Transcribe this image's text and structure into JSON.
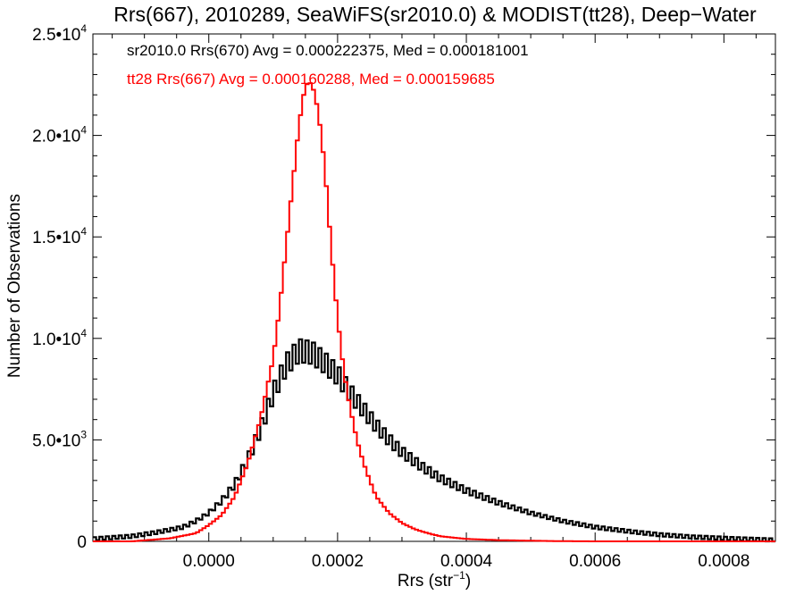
{
  "chart_data": {
    "type": "line",
    "title": "Rrs(667), 2010289, SeaWiFS(sr2010.0) & MODIST(tt28), Deep−Water",
    "xlabel_main": "Rrs (str",
    "xlabel_sup": "−1",
    "xlabel_end": ")",
    "ylabel": "Number of Observations",
    "xlim": [
      -0.00018,
      0.00088
    ],
    "ylim": [
      0,
      25000
    ],
    "x_ticks": [
      0.0,
      0.0002,
      0.0004,
      0.0006,
      0.0008
    ],
    "x_tick_labels": [
      "0.0000",
      "0.0002",
      "0.0004",
      "0.0006",
      "0.0008"
    ],
    "y_ticks": [
      {
        "value": 0,
        "mantissa": "0",
        "exp": ""
      },
      {
        "value": 5000,
        "mantissa": "5.0•10",
        "exp": "3"
      },
      {
        "value": 10000,
        "mantissa": "1.0•10",
        "exp": "4"
      },
      {
        "value": 15000,
        "mantissa": "1.5•10",
        "exp": "4"
      },
      {
        "value": 20000,
        "mantissa": "2.0•10",
        "exp": "4"
      },
      {
        "value": 25000,
        "mantissa": "2.5•10",
        "exp": "4"
      }
    ],
    "annotations": [
      {
        "text": "sr2010.0 Rrs(670) Avg = 0.000222375, Med = 0.000181001",
        "color": "#000000"
      },
      {
        "text": "tt28 Rrs(667) Avg = 0.000160288, Med = 0.000159685",
        "color": "#ff0000"
      }
    ],
    "series": [
      {
        "name": "sr2010.0",
        "color": "#000000",
        "style": "noisy-step",
        "x": [
          -0.00018,
          -0.00012,
          -8e-05,
          -4e-05,
          -2e-05,
          0.0,
          2e-05,
          4e-05,
          6e-05,
          8e-05,
          0.0001,
          0.00012,
          0.00014,
          0.00016,
          0.00018,
          0.0002,
          0.00022,
          0.00024,
          0.00026,
          0.00028,
          0.0003,
          0.00033,
          0.00036,
          0.0004,
          0.00045,
          0.0005,
          0.00055,
          0.0006,
          0.00065,
          0.0007,
          0.00075,
          0.0008,
          0.00088
        ],
        "y": [
          120,
          250,
          450,
          700,
          1000,
          1400,
          2000,
          2800,
          4000,
          5500,
          7300,
          8700,
          9400,
          9300,
          8800,
          8200,
          7300,
          6500,
          5700,
          5000,
          4400,
          3700,
          3100,
          2500,
          1900,
          1400,
          1000,
          700,
          500,
          330,
          220,
          150,
          60
        ]
      },
      {
        "name": "tt28",
        "color": "#ff0000",
        "style": "step",
        "x": [
          -0.00018,
          -0.00012,
          -0.0001,
          -6e-05,
          -2e-05,
          0.0,
          2e-05,
          4e-05,
          6e-05,
          8e-05,
          0.0001,
          0.00011,
          0.00012,
          0.00013,
          0.00014,
          0.00015,
          0.00016,
          0.00017,
          0.00018,
          0.00019,
          0.0002,
          0.00021,
          0.00022,
          0.00023,
          0.00024,
          0.00025,
          0.00026,
          0.00028,
          0.0003,
          0.00032,
          0.00034,
          0.00036,
          0.0004,
          0.00045,
          0.0005,
          0.00055,
          0.0006,
          0.00088
        ],
        "y": [
          0,
          0,
          50,
          150,
          400,
          800,
          1300,
          2200,
          3800,
          6000,
          9000,
          11500,
          14500,
          17500,
          20500,
          22500,
          22600,
          21200,
          18500,
          14500,
          11000,
          8300,
          6500,
          5000,
          3900,
          3000,
          2200,
          1400,
          900,
          600,
          400,
          250,
          120,
          60,
          30,
          10,
          0,
          0
        ]
      }
    ]
  }
}
